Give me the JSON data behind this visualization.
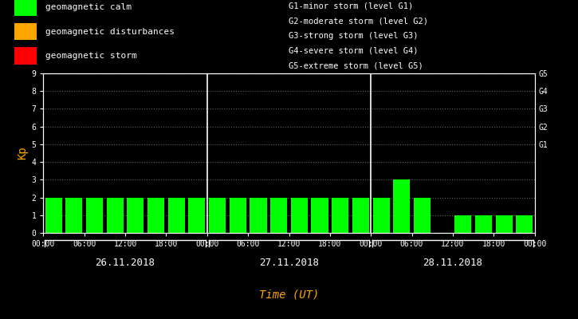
{
  "bg_color": "#000000",
  "bar_color": "#00ff00",
  "text_color": "#ffffff",
  "orange_color": "#ffa500",
  "kp_values": [
    2,
    2,
    2,
    2,
    2,
    2,
    2,
    2,
    2,
    2,
    2,
    2,
    2,
    2,
    2,
    2,
    2,
    3,
    2,
    0,
    1,
    1,
    1,
    1
  ],
  "ylim": [
    0,
    9
  ],
  "yticks": [
    0,
    1,
    2,
    3,
    4,
    5,
    6,
    7,
    8,
    9
  ],
  "g_tick_positions": [
    5,
    6,
    7,
    8,
    9
  ],
  "g_tick_labels": [
    "G1",
    "G2",
    "G3",
    "G4",
    "G5"
  ],
  "dates": [
    "26.11.2018",
    "27.11.2018",
    "28.11.2018"
  ],
  "time_labels": [
    "00:00",
    "06:00",
    "12:00",
    "18:00"
  ],
  "xlabel": "Time (UT)",
  "ylabel": "Kp",
  "legend_entries": [
    {
      "label": "geomagnetic calm",
      "color": "#00ff00"
    },
    {
      "label": "geomagnetic disturbances",
      "color": "#ffa500"
    },
    {
      "label": "geomagnetic storm",
      "color": "#ff0000"
    }
  ],
  "legend_right": [
    "G1-minor storm (level G1)",
    "G2-moderate storm (level G2)",
    "G3-strong storm (level G3)",
    "G4-severe storm (level G4)",
    "G5-extreme storm (level G5)"
  ],
  "bar_width": 0.82,
  "font_family": "monospace",
  "font_size_ticks": 7,
  "font_size_legend": 8,
  "font_size_ylabel": 10,
  "font_size_dates": 9,
  "font_size_xlabel": 10,
  "font_size_right_legend": 7.5,
  "grid_color": "#606060",
  "separator_color": "#ffffff",
  "day_bars": 8
}
